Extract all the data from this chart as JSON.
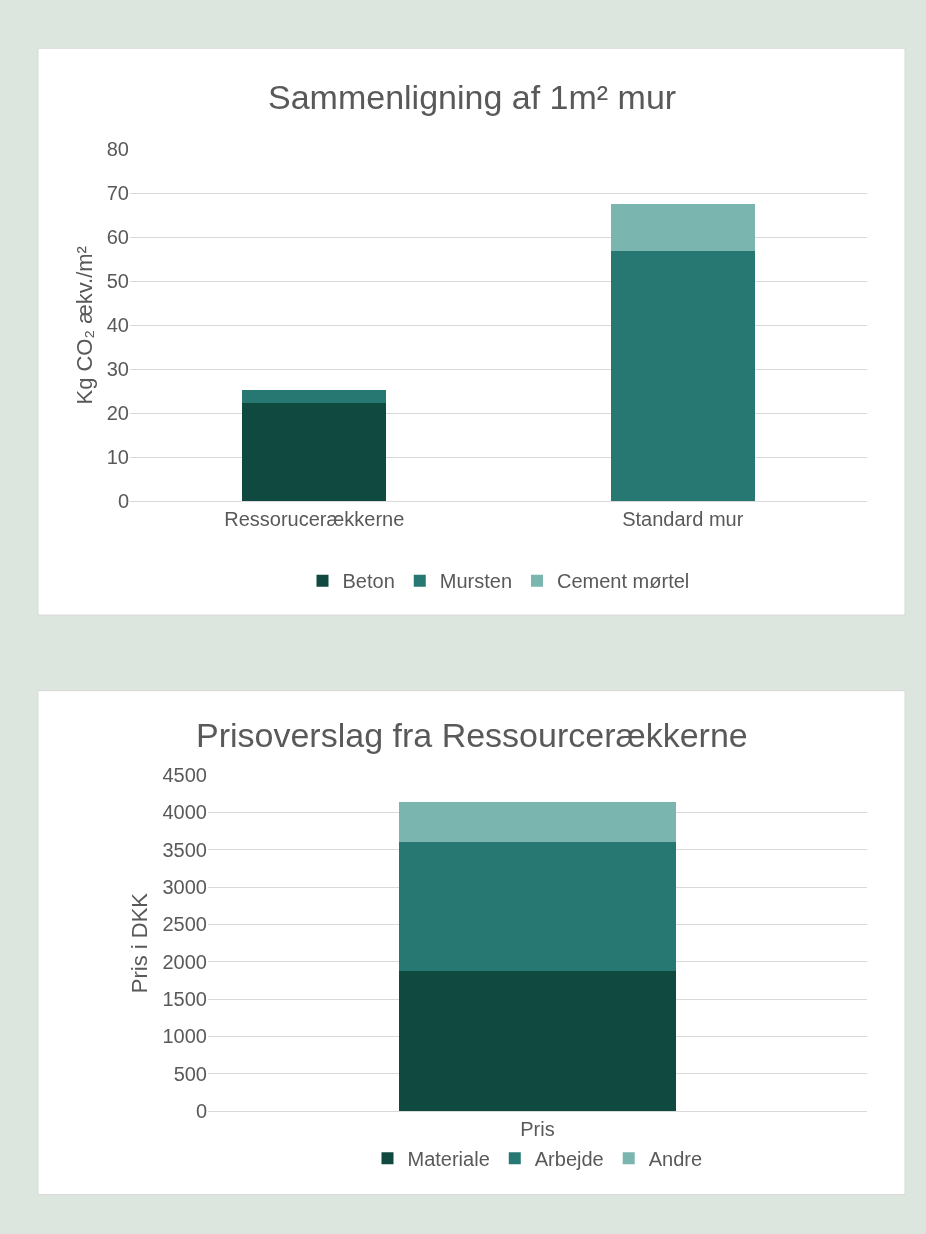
{
  "chart_data": [
    {
      "type": "bar",
      "title": "Sammenligning af 1m² mur",
      "ylabel": "Kg CO₂ ækv./m²",
      "categories": [
        "Ressorucerækkerne",
        "Standard mur"
      ],
      "stacked": true,
      "ylim": [
        0,
        80
      ],
      "yticks": [
        0,
        10,
        20,
        30,
        40,
        50,
        60,
        70,
        80
      ],
      "grid": "y",
      "legend": "bottom",
      "series": [
        {
          "name": "Beton",
          "color": "#0f4940",
          "values": [
            22.4,
            null
          ]
        },
        {
          "name": "Mursten",
          "color": "#277873",
          "values": [
            2.8,
            56.8
          ]
        },
        {
          "name": "Cement mørtel",
          "color": "#7ab5af",
          "values": [
            null,
            10.7
          ]
        }
      ]
    },
    {
      "type": "bar",
      "title": "Prisoverslag fra Ressourcerækkerne",
      "ylabel": "Pris i DKK",
      "categories": [
        "Pris"
      ],
      "stacked": true,
      "ylim": [
        0,
        4500
      ],
      "yticks": [
        0,
        500,
        1000,
        1500,
        2000,
        2500,
        3000,
        3500,
        4000,
        4500
      ],
      "grid": "y",
      "legend": "bottom",
      "series": [
        {
          "name": "Materiale",
          "color": "#0f4940",
          "values": [
            1880
          ]
        },
        {
          "name": "Arbejde",
          "color": "#277873",
          "values": [
            1720
          ]
        },
        {
          "name": "Andre",
          "color": "#7ab5af",
          "values": [
            540
          ]
        }
      ]
    }
  ]
}
